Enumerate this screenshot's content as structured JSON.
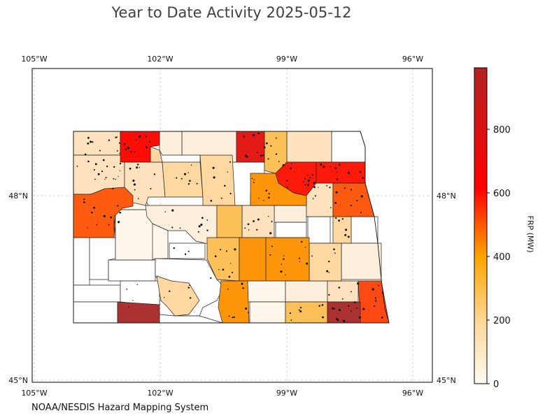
{
  "title": "Year to Date Activity 2025-05-12",
  "credit": "NOAA/NESDIS Hazard Mapping System",
  "map": {
    "lon_ticks_top": [
      "105°W",
      "102°W",
      "99°W",
      "96°W"
    ],
    "lon_ticks_bottom": [
      "105°W",
      "102°W",
      "99°W",
      "96°W"
    ],
    "lat_ticks_left": [
      "48°N",
      "45°N"
    ],
    "lat_ticks_right": [
      "48°N",
      "45°N"
    ],
    "grid": true
  },
  "colorbar": {
    "label": "FRP (MW)",
    "ticks": [
      "0",
      "200",
      "400",
      "600",
      "800"
    ],
    "colors": [
      "#fffbf3",
      "#ffd795",
      "#ffa500",
      "#ff0000",
      "#b22222"
    ]
  },
  "chart_data": {
    "type": "choropleth",
    "units": "MW",
    "range": [
      0,
      980
    ],
    "regions": [
      {
        "frp": 150,
        "color": "#fee2bd"
      },
      {
        "frp": 700,
        "color": "#fe0c06"
      },
      {
        "frp": 70,
        "color": "#fef2e2"
      },
      {
        "frp": 90,
        "color": "#feead0"
      },
      {
        "frp": 780,
        "color": "#e31b17"
      },
      {
        "frp": 250,
        "color": "#fec058"
      },
      {
        "frp": 140,
        "color": "#fee0b5"
      },
      {
        "frp": 10,
        "color": "#fffdfa"
      },
      {
        "frp": 650,
        "color": "#fe1a0b"
      },
      {
        "frp": 620,
        "color": "#fe1a0b"
      },
      {
        "frp": 460,
        "color": "#fe5a10"
      },
      {
        "frp": 400,
        "color": "#fe8f05"
      },
      {
        "frp": 480,
        "color": "#fe5110"
      },
      {
        "frp": 240,
        "color": "#fec562"
      },
      {
        "frp": 120,
        "color": "#fee1ae"
      },
      {
        "frp": 960,
        "color": "#ac3232"
      },
      {
        "frp": 520,
        "color": "#fe4a12"
      }
    ]
  }
}
